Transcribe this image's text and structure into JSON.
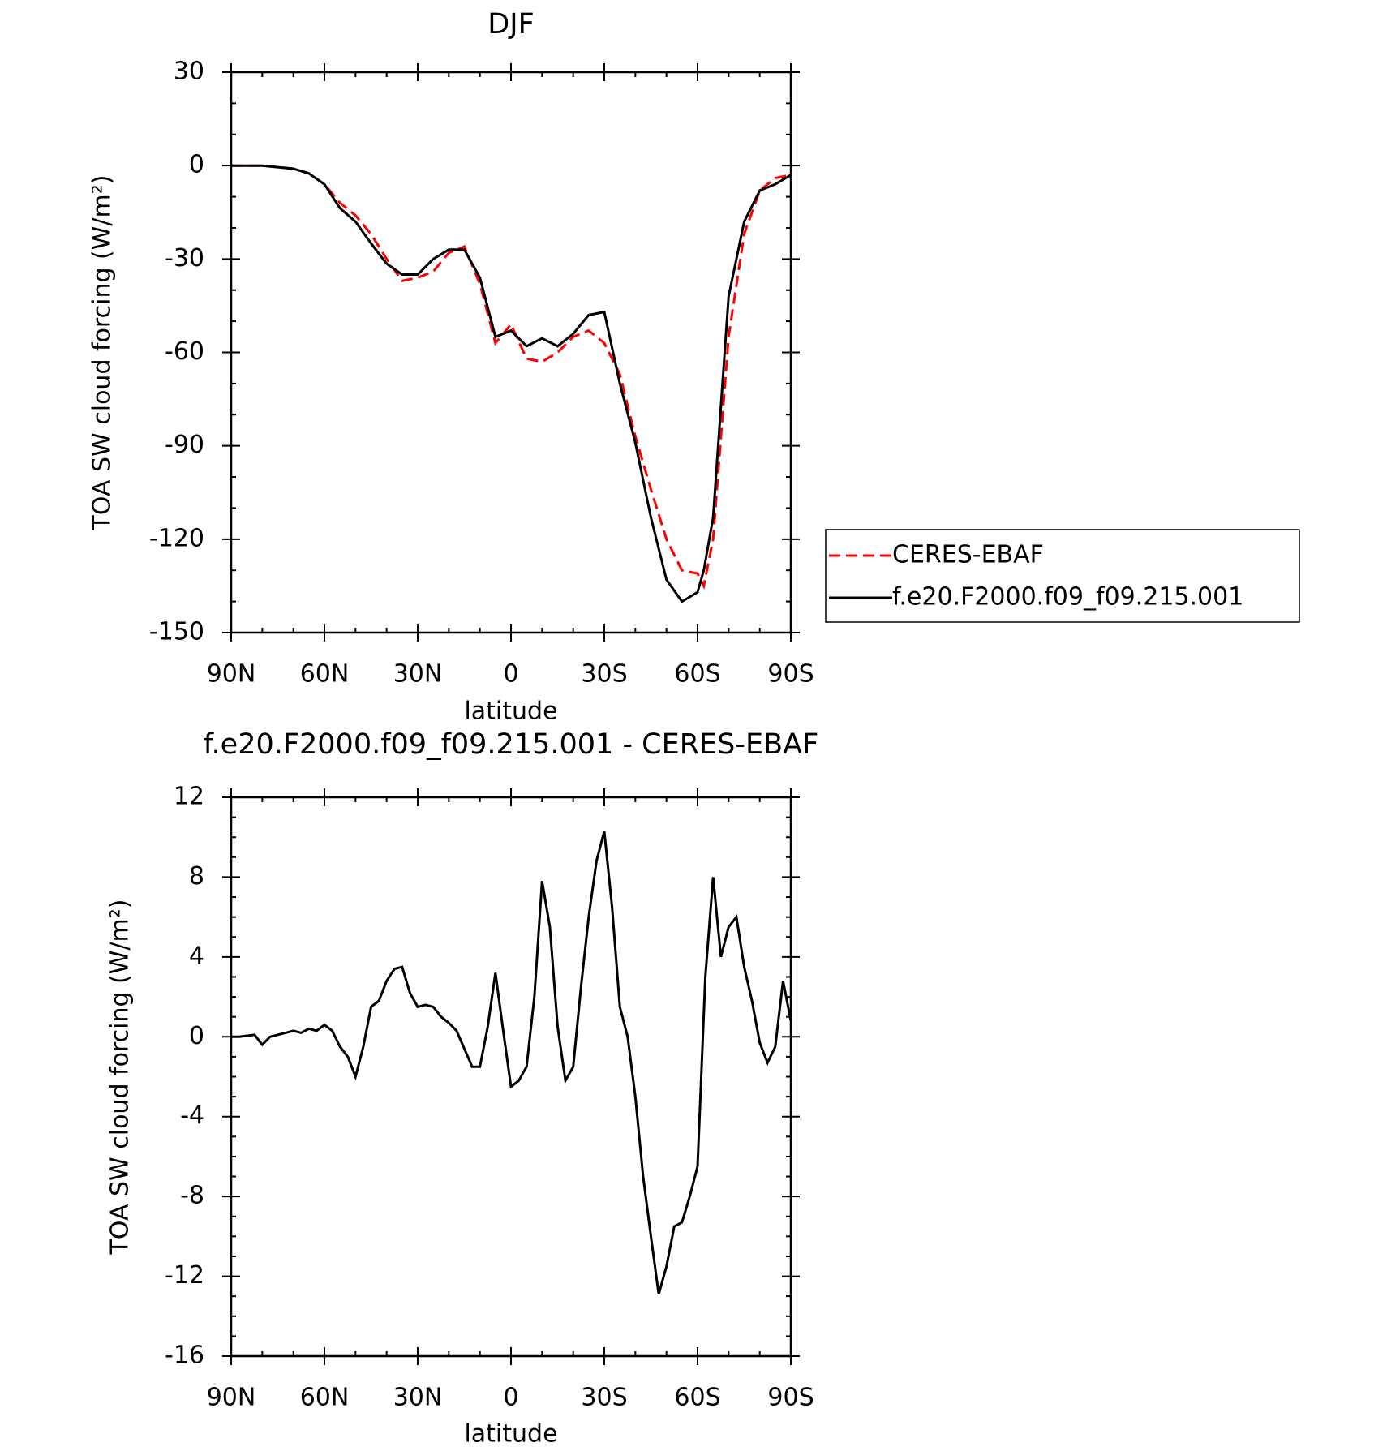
{
  "chart_data": [
    {
      "type": "line",
      "title": "DJF",
      "xlabel": "latitude",
      "ylabel": "TOA SW cloud forcing (W/m²)",
      "x": [
        90,
        85,
        80,
        75,
        70,
        65,
        60,
        55,
        50,
        45,
        40,
        35,
        30,
        25,
        20,
        15,
        10,
        5,
        0,
        -5,
        -10,
        -15,
        -20,
        -25,
        -30,
        -35,
        -40,
        -45,
        -50,
        -55,
        -60,
        -62,
        -65,
        -70,
        -75,
        -80,
        -85,
        -90
      ],
      "series": [
        {
          "name": "CERES-EBAF",
          "color": "#ff0000",
          "line_style": "dashed",
          "values": [
            0,
            0,
            0,
            -0.5,
            -1,
            -2.5,
            -6,
            -12,
            -16,
            -22,
            -30,
            -37,
            -36,
            -34,
            -28,
            -26,
            -38,
            -57,
            -51,
            -62,
            -63,
            -60,
            -55,
            -53,
            -57,
            -67,
            -87,
            -104,
            -120,
            -130,
            -131,
            -135,
            -120,
            -55,
            -22,
            -8,
            -4,
            -3
          ]
        },
        {
          "name": "f.e20.F2000.f09_f09.215.001",
          "color": "#000000",
          "line_style": "solid",
          "values": [
            0,
            0,
            0,
            -0.5,
            -1,
            -2.5,
            -6,
            -13.7,
            -18,
            -25,
            -31.5,
            -35,
            -35,
            -30,
            -27,
            -27,
            -36,
            -55,
            -53,
            -58,
            -55.5,
            -58,
            -54,
            -48,
            -47,
            -70,
            -89,
            -113,
            -133,
            -140,
            -137,
            -130,
            -113,
            -42,
            -18,
            -8,
            -6,
            -3
          ]
        }
      ],
      "xlim": [
        90,
        -90
      ],
      "xticks": [
        {
          "value": 90,
          "label": "90N"
        },
        {
          "value": 60,
          "label": "60N"
        },
        {
          "value": 30,
          "label": "30N"
        },
        0,
        {
          "value": -30,
          "label": "30S"
        },
        {
          "value": -60,
          "label": "60S"
        },
        {
          "value": -90,
          "label": "90S"
        }
      ],
      "xminorticks": [
        80,
        70,
        50,
        40,
        20,
        10,
        -10,
        -20,
        -40,
        -50,
        -70,
        -80
      ],
      "ylim": [
        -150,
        30
      ],
      "yticks": [
        30,
        0,
        -30,
        -60,
        -90,
        -120,
        -150
      ],
      "yminorticks": [
        20,
        10,
        -10,
        -20,
        -40,
        -50,
        -70,
        -80,
        -100,
        -110,
        -130,
        -140
      ],
      "legend": "right"
    },
    {
      "type": "line",
      "title": "f.e20.F2000.f09_f09.215.001 - CERES-EBAF",
      "xlabel": "latitude",
      "ylabel": "TOA SW cloud forcing (W/m²)",
      "x": [
        90,
        87.5,
        85,
        82.5,
        80,
        77.5,
        75,
        72.5,
        70,
        67.5,
        65,
        62.5,
        60,
        57.5,
        55,
        52.5,
        50,
        47.5,
        45,
        42.5,
        40,
        37.5,
        35,
        32.5,
        30,
        27.5,
        25,
        22.5,
        20,
        17.5,
        15,
        12.5,
        10,
        7.5,
        5,
        2.5,
        0,
        -2.5,
        -5,
        -7.5,
        -10,
        -12.5,
        -15,
        -17.5,
        -20,
        -22.5,
        -25,
        -27.5,
        -30,
        -32.5,
        -35,
        -37.5,
        -40,
        -42.5,
        -45,
        -47.5,
        -50,
        -52.5,
        -55,
        -57.5,
        -60,
        -62.5,
        -65,
        -67.5,
        -70,
        -72.5,
        -75,
        -77.5,
        -80,
        -82.5,
        -85,
        -87.5,
        -90
      ],
      "series": [
        {
          "color": "#000000",
          "line_style": "solid",
          "values": [
            0,
            0,
            0.05,
            0.1,
            -0.4,
            0,
            0.1,
            0.2,
            0.3,
            0.2,
            0.4,
            0.3,
            0.6,
            0.3,
            -0.5,
            -1.0,
            -2.0,
            -0.5,
            1.5,
            1.8,
            2.8,
            3.4,
            3.5,
            2.2,
            1.5,
            1.6,
            1.5,
            1.0,
            0.7,
            0.3,
            -0.6,
            -1.5,
            -1.5,
            0.5,
            3.2,
            0.3,
            -2.5,
            -2.2,
            -1.5,
            2.0,
            7.8,
            5.5,
            0.5,
            -2.2,
            -1.5,
            2.5,
            6.0,
            8.8,
            10.3,
            6.5,
            1.5,
            0.0,
            -3.0,
            -7.0,
            -10.0,
            -12.9,
            -11.5,
            -9.5,
            -9.3,
            -8.0,
            -6.5,
            3.0,
            8.0,
            4.0,
            5.5,
            6.0,
            3.5,
            1.8,
            -0.3,
            -1.3,
            -0.5,
            2.8,
            0.8
          ]
        }
      ],
      "xlim": [
        90,
        -90
      ],
      "xticks": [
        {
          "value": 90,
          "label": "90N"
        },
        {
          "value": 60,
          "label": "60N"
        },
        {
          "value": 30,
          "label": "30N"
        },
        0,
        {
          "value": -30,
          "label": "30S"
        },
        {
          "value": -60,
          "label": "60S"
        },
        {
          "value": -90,
          "label": "90S"
        }
      ],
      "xminorticks": [
        80,
        70,
        50,
        40,
        20,
        10,
        -10,
        -20,
        -40,
        -50,
        -70,
        -80
      ],
      "ylim": [
        -16,
        12
      ],
      "yticks": [
        12,
        8,
        4,
        0,
        -4,
        -8,
        -12,
        -16
      ],
      "yminorticks": [
        11,
        10,
        9,
        7,
        6,
        5,
        3,
        2,
        1,
        -1,
        -2,
        -3,
        -5,
        -6,
        -7,
        -9,
        -10,
        -11,
        -13,
        -14,
        -15
      ]
    }
  ]
}
